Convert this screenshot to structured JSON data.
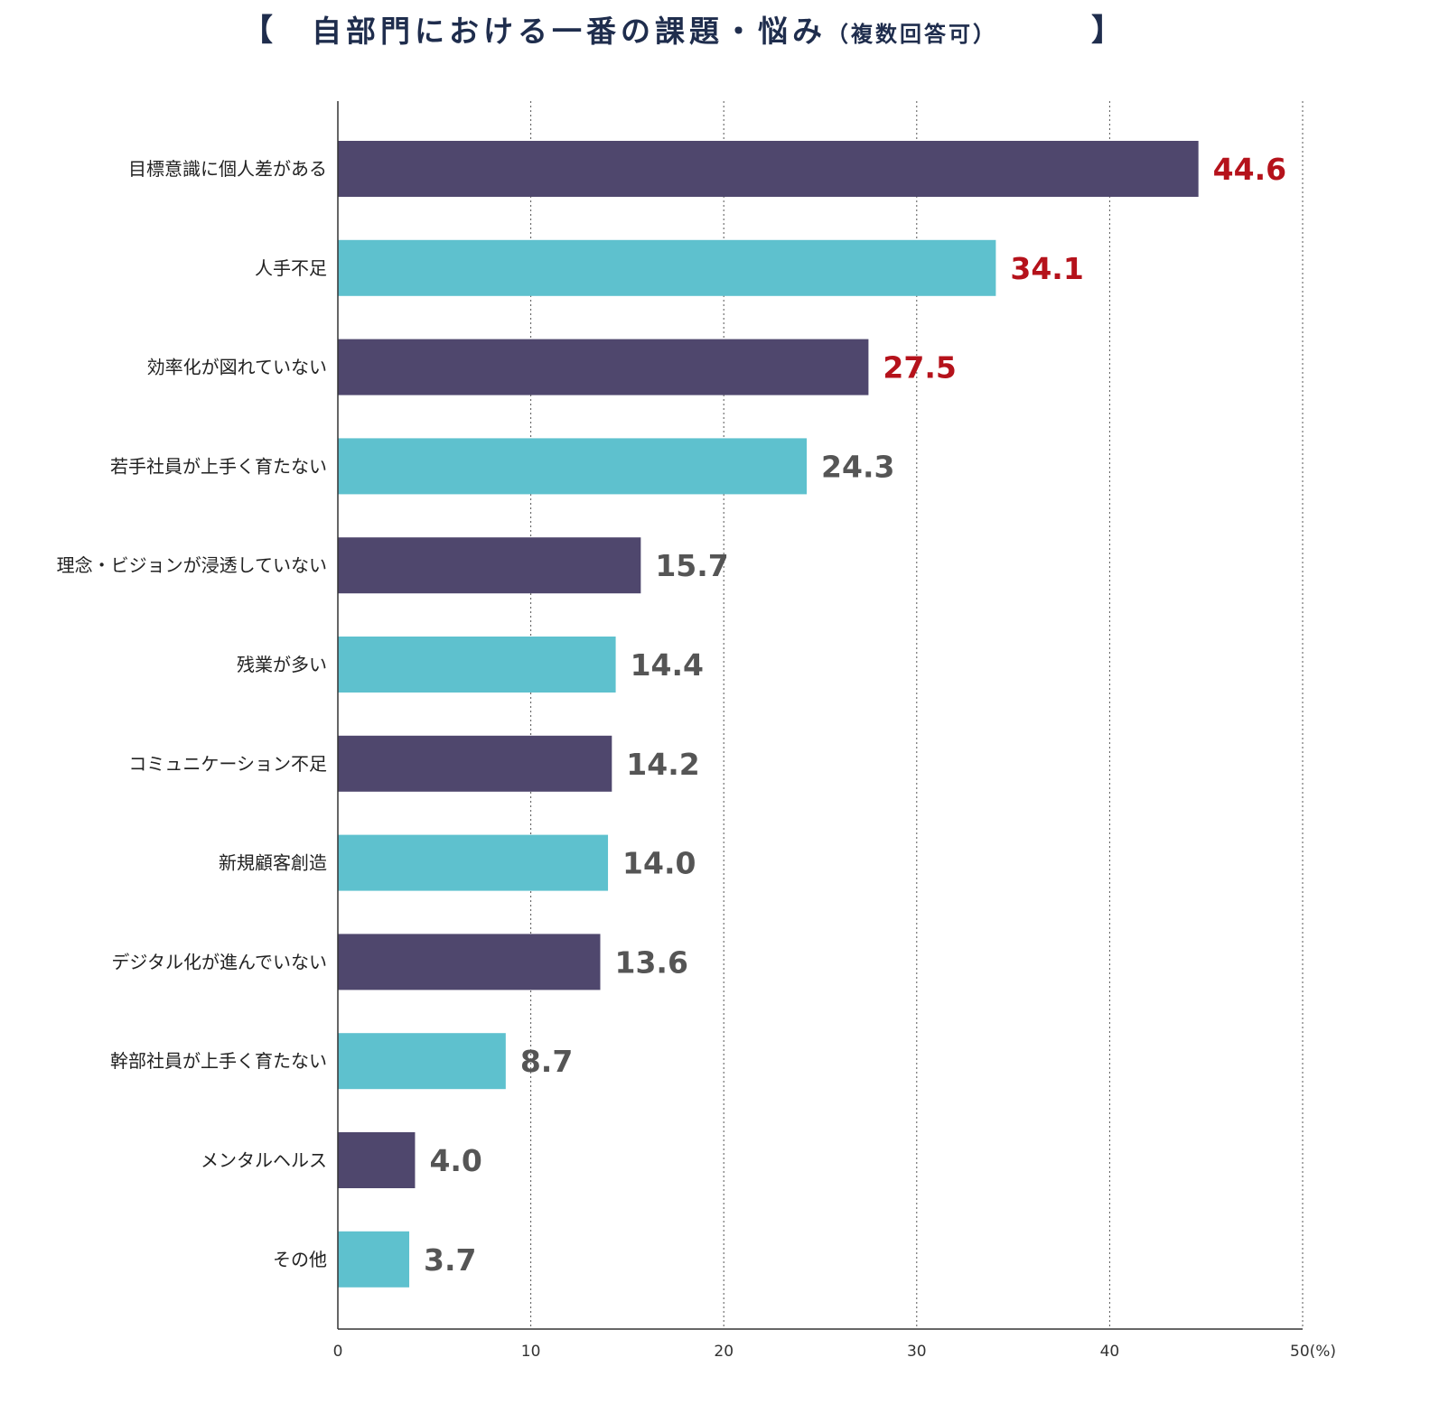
{
  "title": {
    "open_bracket": "【",
    "main": "自部門における一番の課題・悩み",
    "sub": "（複数回答可）",
    "close_bracket": "】"
  },
  "chart_data": {
    "type": "bar",
    "orientation": "horizontal",
    "title": "自部門における一番の課題・悩み（複数回答可）",
    "categories": [
      "目標意識に個人差がある",
      "人手不足",
      "効率化が図れていない",
      "若手社員が上手く育たない",
      "理念・ビジョンが浸透していない",
      "残業が多い",
      "コミュニケーション不足",
      "新規顧客創造",
      "デジタル化が進んでいない",
      "幹部社員が上手く育たない",
      "メンタルヘルス",
      "その他"
    ],
    "values": [
      44.6,
      34.1,
      27.5,
      24.3,
      15.7,
      14.4,
      14.2,
      14.0,
      13.6,
      8.7,
      4.0,
      3.7
    ],
    "value_labels": [
      "44.6",
      "34.1",
      "27.5",
      "24.3",
      "15.7",
      "14.4",
      "14.2",
      "14.0",
      "13.6",
      "8.7",
      "4.0",
      "3.7"
    ],
    "highlight_top_n": 3,
    "xlim": [
      0,
      50
    ],
    "xticks": [
      0,
      10,
      20,
      30,
      40,
      50
    ],
    "xtick_labels": [
      "0",
      "10",
      "20",
      "30",
      "40",
      "50(%)"
    ],
    "xlabel": "",
    "ylabel": "",
    "grid": "vertical-dotted",
    "colors": {
      "bar_dark": "#4f476d",
      "bar_light": "#5ec1ce",
      "highlight_label": "#b5121b",
      "normal_label": "#555555",
      "axis": "#333333",
      "grid": "#555555"
    }
  }
}
